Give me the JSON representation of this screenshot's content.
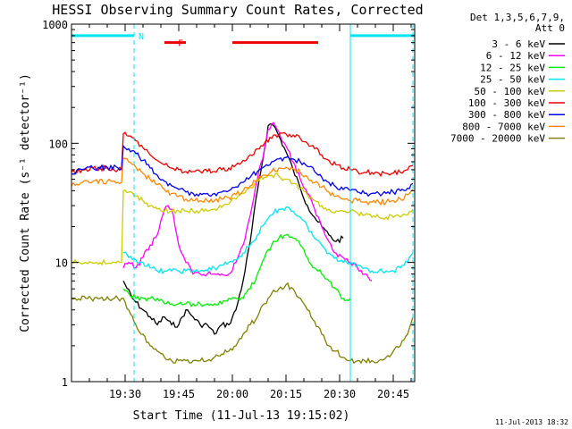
{
  "chart_data": {
    "type": "line",
    "title": "HESSI Observing Summary Count Rates, Corrected",
    "xlabel": "Start Time (11-Jul-13 19:15:02)",
    "ylabel": "Corrected Count Rate (s⁻¹ detector⁻¹)",
    "yscale": "log",
    "ylim": [
      1,
      1000
    ],
    "xlim_minutes_after_start": [
      0,
      96
    ],
    "x_ticks": [
      {
        "label": "19:30",
        "minutes": 15
      },
      {
        "label": "19:45",
        "minutes": 30
      },
      {
        "label": "20:00",
        "minutes": 45
      },
      {
        "label": "20:15",
        "minutes": 60
      },
      {
        "label": "20:30",
        "minutes": 75
      },
      {
        "label": "20:45",
        "minutes": 90
      }
    ],
    "y_ticks": [
      {
        "label": "1",
        "value": 1
      },
      {
        "label": "10",
        "value": 10
      },
      {
        "label": "100",
        "value": 100
      },
      {
        "label": "1000",
        "value": 1000
      }
    ],
    "legend_header": [
      "Det 1,3,5,6,7,9,",
      "Att 0"
    ],
    "legend_position": "right",
    "flags": [
      {
        "label": "N",
        "color": "#00e5ee",
        "segments": [
          [
            0,
            17.5
          ],
          [
            78,
            96
          ]
        ],
        "level": 800
      },
      {
        "label": "F",
        "color": "#ee0000",
        "segments": [
          [
            26,
            32
          ],
          [
            45,
            69
          ]
        ],
        "level": 700
      }
    ],
    "boundaries_minutes": [
      17.5,
      78,
      95.5
    ],
    "series": [
      {
        "name": "3 - 6 keV",
        "color": "#000000",
        "x": [
          0,
          10,
          14,
          14.5,
          17,
          20,
          22,
          24,
          26,
          28,
          30,
          32,
          34,
          36,
          38,
          40,
          42,
          44,
          46,
          48,
          50,
          52,
          54,
          55,
          56,
          57,
          58,
          60,
          62,
          64,
          66,
          68,
          70,
          72,
          74,
          76,
          78
        ],
        "y": [
          null,
          null,
          null,
          7,
          5,
          4,
          3.5,
          3,
          3.5,
          3,
          3,
          4,
          3.5,
          3,
          3,
          2.5,
          3,
          3,
          4,
          7,
          15,
          40,
          90,
          140,
          145,
          135,
          115,
          85,
          60,
          42,
          30,
          24,
          20,
          17,
          15,
          16,
          null
        ]
      },
      {
        "name": "6 - 12 keV",
        "color": "#ff00ff",
        "x": [
          14.5,
          16,
          18,
          20,
          22,
          24,
          26,
          27,
          28,
          30,
          32,
          34,
          36,
          38,
          40,
          42,
          44,
          46,
          48,
          50,
          52,
          54,
          55,
          56,
          57,
          58,
          60,
          62,
          64,
          66,
          68,
          70,
          72,
          74,
          76,
          78,
          80,
          82,
          84
        ],
        "y": [
          9,
          10,
          9,
          11,
          14,
          17,
          28,
          30,
          28,
          14,
          10,
          8,
          8,
          8,
          8,
          8,
          8,
          10,
          14,
          25,
          50,
          90,
          130,
          145,
          140,
          125,
          95,
          70,
          50,
          38,
          28,
          20,
          15,
          12,
          11,
          10,
          9,
          8,
          7
        ]
      },
      {
        "name": "12 - 25 keV",
        "color": "#00ee00",
        "x": [
          14.5,
          16,
          18,
          20,
          22,
          24,
          26,
          28,
          30,
          32,
          34,
          36,
          38,
          40,
          42,
          44,
          46,
          48,
          50,
          52,
          54,
          56,
          58,
          60,
          62,
          64,
          66,
          68,
          70,
          72,
          74,
          76,
          78
        ],
        "y": [
          6,
          5.5,
          5,
          5,
          5,
          5,
          4.5,
          4.5,
          4.5,
          4.5,
          4.5,
          4.5,
          4.5,
          4.5,
          4.5,
          5,
          5,
          5,
          6,
          8,
          11,
          14,
          16,
          17,
          16,
          14,
          11,
          9,
          8,
          7,
          6,
          5,
          5
        ]
      },
      {
        "name": "25 - 50 keV",
        "color": "#00e5ee",
        "x": [
          14.5,
          16,
          18,
          20,
          22,
          24,
          26,
          28,
          30,
          32,
          34,
          36,
          38,
          40,
          42,
          44,
          46,
          48,
          50,
          52,
          54,
          56,
          58,
          60,
          62,
          64,
          66,
          68,
          70,
          72,
          74,
          76,
          78,
          80,
          82,
          84,
          86,
          88,
          90,
          92,
          94,
          95.5
        ],
        "y": [
          12,
          11,
          10.5,
          10,
          9,
          8.5,
          8.5,
          8.5,
          8.5,
          8.5,
          8.5,
          8.5,
          8.5,
          9,
          9.5,
          10,
          10.5,
          12,
          14,
          17,
          21,
          25,
          28,
          29,
          27,
          24,
          20,
          16,
          14,
          12,
          11,
          10,
          10,
          9.5,
          9,
          8.5,
          8.5,
          8.5,
          8.5,
          9,
          10,
          12
        ]
      },
      {
        "name": "50 - 100 keV",
        "color": "#cccc00",
        "x": [
          0,
          4,
          8,
          12,
          14,
          14.5,
          16,
          18,
          20,
          22,
          24,
          26,
          28,
          30,
          32,
          34,
          36,
          38,
          40,
          42,
          44,
          46,
          48,
          50,
          52,
          54,
          56,
          58,
          60,
          62,
          64,
          66,
          68,
          70,
          72,
          74,
          76,
          78,
          80,
          82,
          84,
          86,
          88,
          90,
          92,
          94,
          95.5
        ],
        "y": [
          10,
          10,
          10,
          10,
          10,
          40,
          39,
          36,
          33,
          30,
          28,
          27,
          27,
          27,
          27,
          27,
          27,
          27,
          28,
          29,
          31,
          34,
          38,
          43,
          48,
          52,
          54,
          53,
          50,
          46,
          42,
          37,
          33,
          30,
          28,
          27,
          27,
          27,
          26,
          25,
          24,
          24,
          24,
          24,
          24,
          25,
          28
        ]
      },
      {
        "name": "100 - 300 keV",
        "color": "#ee0000",
        "x": [
          0,
          3,
          6,
          10,
          13,
          14,
          14.5,
          16,
          18,
          20,
          22,
          24,
          26,
          28,
          30,
          32,
          34,
          36,
          38,
          40,
          42,
          44,
          46,
          48,
          50,
          52,
          54,
          56,
          58,
          60,
          62,
          64,
          66,
          68,
          70,
          72,
          74,
          76,
          78,
          80,
          82,
          84,
          86,
          88,
          90,
          92,
          94,
          95.5
        ],
        "y": [
          57,
          60,
          62,
          62,
          60,
          60,
          120,
          115,
          105,
          92,
          80,
          72,
          66,
          62,
          60,
          58,
          58,
          58,
          58,
          58,
          60,
          62,
          66,
          72,
          80,
          90,
          100,
          110,
          118,
          120,
          117,
          110,
          100,
          90,
          80,
          72,
          66,
          62,
          60,
          58,
          57,
          57,
          56,
          56,
          56,
          57,
          60,
          65
        ]
      },
      {
        "name": "300 - 800 keV",
        "color": "#0000ee",
        "x": [
          0,
          3,
          6,
          10,
          13,
          14,
          14.5,
          16,
          18,
          20,
          22,
          24,
          26,
          28,
          30,
          32,
          34,
          36,
          38,
          40,
          42,
          44,
          46,
          48,
          50,
          52,
          54,
          56,
          58,
          60,
          62,
          64,
          66,
          68,
          70,
          72,
          74,
          76,
          78,
          80,
          82,
          84,
          86,
          88,
          90,
          92,
          94,
          95.5
        ],
        "y": [
          55,
          60,
          62,
          63,
          62,
          62,
          95,
          90,
          82,
          72,
          62,
          54,
          48,
          44,
          41,
          39,
          38,
          38,
          38,
          38,
          39,
          40,
          43,
          47,
          52,
          58,
          64,
          70,
          74,
          76,
          74,
          70,
          64,
          58,
          52,
          47,
          43,
          41,
          40,
          39,
          38,
          38,
          38,
          38,
          39,
          40,
          42,
          46
        ]
      },
      {
        "name": "800 - 7000 keV",
        "color": "#ff8800",
        "x": [
          0,
          3,
          6,
          10,
          13,
          14,
          14.5,
          16,
          18,
          20,
          22,
          24,
          26,
          28,
          30,
          32,
          34,
          36,
          38,
          40,
          42,
          44,
          46,
          48,
          50,
          52,
          54,
          56,
          58,
          60,
          62,
          64,
          66,
          68,
          70,
          72,
          74,
          76,
          78,
          80,
          82,
          84,
          86,
          88,
          90,
          92,
          94,
          95.5
        ],
        "y": [
          44,
          47,
          48,
          48,
          47,
          47,
          75,
          70,
          63,
          56,
          50,
          45,
          41,
          38,
          36,
          34,
          33,
          33,
          33,
          33,
          34,
          35,
          37,
          40,
          44,
          49,
          54,
          58,
          62,
          63,
          61,
          57,
          52,
          47,
          43,
          39,
          36,
          34,
          33,
          33,
          32,
          32,
          32,
          32,
          33,
          34,
          37,
          41
        ]
      },
      {
        "name": "7000 - 20000 keV",
        "color": "#808000",
        "x": [
          0,
          4,
          8,
          12,
          14,
          14.5,
          16,
          18,
          20,
          22,
          24,
          26,
          28,
          30,
          32,
          34,
          36,
          38,
          40,
          42,
          44,
          46,
          48,
          50,
          52,
          54,
          56,
          58,
          60,
          62,
          64,
          66,
          68,
          70,
          72,
          74,
          76,
          78,
          80,
          82,
          84,
          86,
          88,
          90,
          92,
          94,
          95.5
        ],
        "y": [
          5,
          5,
          5,
          5,
          5,
          5,
          4,
          3,
          2.5,
          2,
          1.8,
          1.6,
          1.5,
          1.5,
          1.5,
          1.5,
          1.5,
          1.5,
          1.6,
          1.7,
          1.8,
          2,
          2.5,
          3,
          3.5,
          4.5,
          5.5,
          6,
          6.5,
          6,
          5,
          4,
          3.2,
          2.5,
          2,
          1.8,
          1.6,
          1.5,
          1.5,
          1.5,
          1.5,
          1.5,
          1.6,
          1.8,
          2,
          2.5,
          3.5
        ]
      }
    ]
  },
  "footer_timestamp": "11-Jul-2013 18:32"
}
